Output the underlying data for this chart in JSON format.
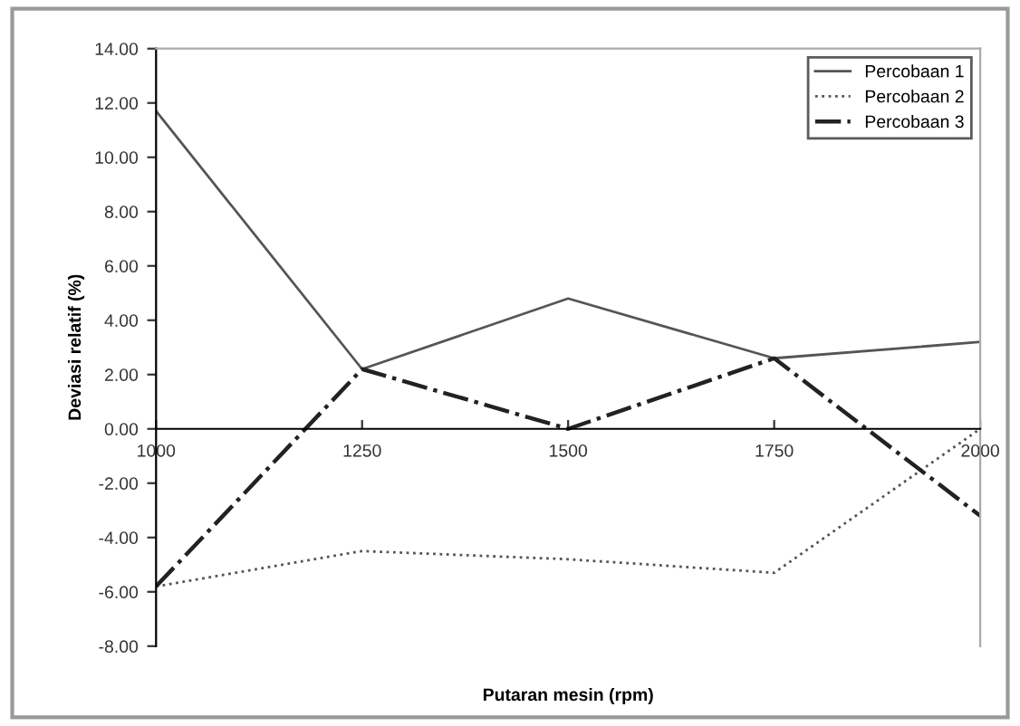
{
  "chart_data": {
    "type": "line",
    "xlabel": "Putaran mesin (rpm)",
    "ylabel": "Deviasi relatif (%)",
    "x": [
      1000,
      1250,
      1500,
      1750,
      2000
    ],
    "xlim": [
      1000,
      2000
    ],
    "xticks": [
      1000,
      1250,
      1500,
      1750,
      2000
    ],
    "series": [
      {
        "name": "Percobaan 1",
        "color": "#555555",
        "line_style": "solid",
        "values": [
          11.7,
          2.2,
          4.8,
          2.6,
          3.2
        ]
      },
      {
        "name": "Percobaan 2",
        "color": "#555555",
        "line_style": "dotted",
        "values": [
          -5.8,
          -4.5,
          -4.8,
          -5.3,
          0.0
        ]
      },
      {
        "name": "Percobaan 3",
        "color": "#222222",
        "line_style": "dashdot",
        "values": [
          -5.8,
          2.2,
          0.0,
          2.6,
          -3.2
        ]
      }
    ],
    "ylim": [
      -8,
      14
    ],
    "yticks": [
      {
        "value": -8,
        "label": "-8.00"
      },
      {
        "value": -6,
        "label": "-6.00"
      },
      {
        "value": -4,
        "label": "-4.00"
      },
      {
        "value": -2,
        "label": "-2.00"
      },
      {
        "value": 0,
        "label": "0.00"
      },
      {
        "value": 2,
        "label": "2.00"
      },
      {
        "value": 4,
        "label": "4.00"
      },
      {
        "value": 6,
        "label": "6.00"
      },
      {
        "value": 8,
        "label": "8.00"
      },
      {
        "value": 10,
        "label": "10.00"
      },
      {
        "value": 12,
        "label": "12.00"
      },
      {
        "value": 14,
        "label": "14.00"
      }
    ],
    "grid": false,
    "legend": "top right",
    "marker": "none"
  }
}
